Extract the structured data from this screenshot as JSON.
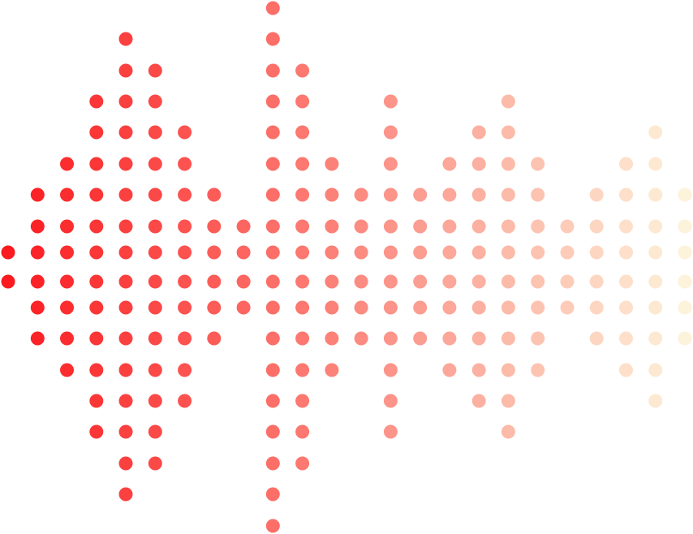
{
  "graphic": {
    "type": "dot-waveform",
    "column_dot_counts": [
      2,
      6,
      8,
      12,
      16,
      14,
      10,
      6,
      4,
      18,
      14,
      8,
      6,
      12,
      6,
      8,
      10,
      12,
      8,
      4,
      6,
      8,
      10,
      6
    ],
    "color_start": "#fb1a1f",
    "color_end": "#fdf2da"
  }
}
